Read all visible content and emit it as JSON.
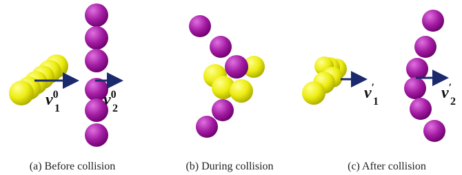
{
  "panels": [
    {
      "caption": "(a) Before collision"
    },
    {
      "caption": "(b) During collision"
    },
    {
      "caption": "(c) After collision"
    }
  ],
  "vectors": [
    {
      "symbol": "v",
      "subscript": "1",
      "superscript": "0"
    },
    {
      "symbol": "v",
      "subscript": "2",
      "superscript": "0"
    },
    {
      "symbol": "v",
      "subscript": "1",
      "superscript": "′"
    },
    {
      "symbol": "v",
      "subscript": "2",
      "superscript": "′"
    }
  ]
}
